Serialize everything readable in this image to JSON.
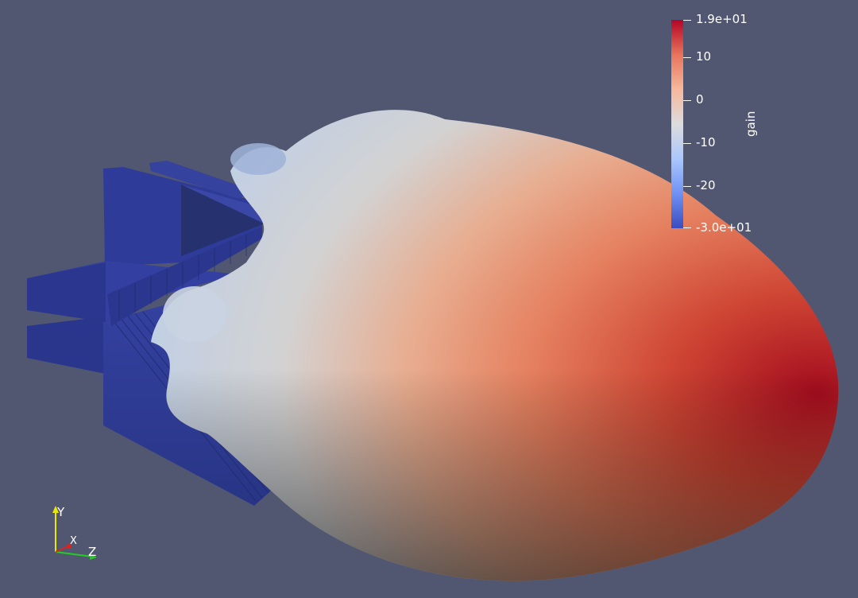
{
  "colorbar": {
    "title": "gain",
    "gradient": [
      "#3b4cc0",
      "#6f92f3",
      "#aac7fd",
      "#dddcdc",
      "#f7b89c",
      "#e7745b",
      "#b40426"
    ],
    "labels": [
      "1.9e+01",
      "10",
      "0",
      "-10",
      "-20",
      "-3.0e+01"
    ]
  },
  "axes": {
    "y": "Y",
    "x": "X",
    "z": "Z"
  },
  "colors": {
    "background": "#525771",
    "structure": "#2f3d96",
    "lobe_cool": "#c9d6e8",
    "lobe_hot": "#a8161f"
  }
}
